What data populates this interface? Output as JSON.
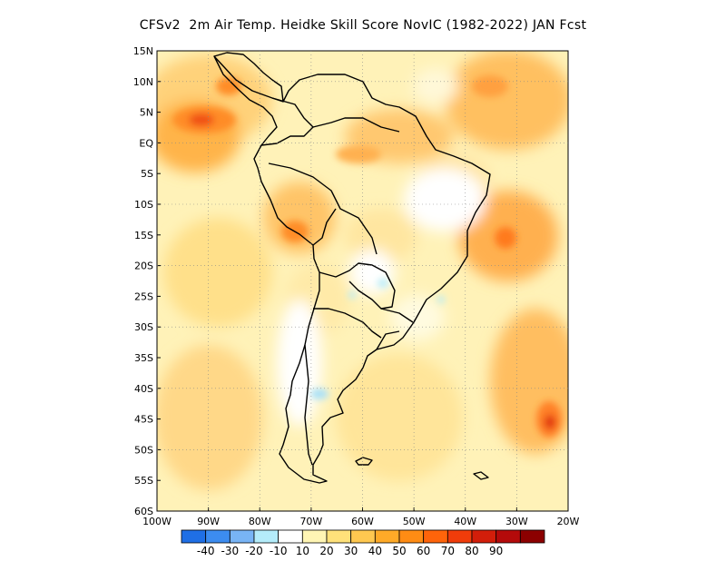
{
  "title": "CFSv2  2m Air Temp. Heidke Skill Score NovIC (1982-2022) JAN Fcst",
  "map": {
    "lon_range": [
      -100,
      -20
    ],
    "lat_range": [
      -60,
      15
    ],
    "lat_ticks": [
      "15N",
      "10N",
      "5N",
      "EQ",
      "5S",
      "10S",
      "15S",
      "20S",
      "25S",
      "30S",
      "35S",
      "40S",
      "45S",
      "50S",
      "55S",
      "60S"
    ],
    "lon_ticks": [
      "100W",
      "90W",
      "80W",
      "70W",
      "60W",
      "50W",
      "40W",
      "30W",
      "20W"
    ]
  },
  "colorbar": {
    "colors": [
      "#1f6fe5",
      "#3c8cf0",
      "#78b4f5",
      "#b4ecfa",
      "#ffffff",
      "#fff5b4",
      "#ffe17a",
      "#ffc850",
      "#ffaa28",
      "#ff8c14",
      "#ff640a",
      "#f03c0a",
      "#d21e0a",
      "#b40a0a",
      "#8c0000"
    ],
    "labels": [
      "-40",
      "-30",
      "-20",
      "-10",
      "10",
      "20",
      "30",
      "40",
      "50",
      "60",
      "70",
      "80",
      "90"
    ]
  }
}
